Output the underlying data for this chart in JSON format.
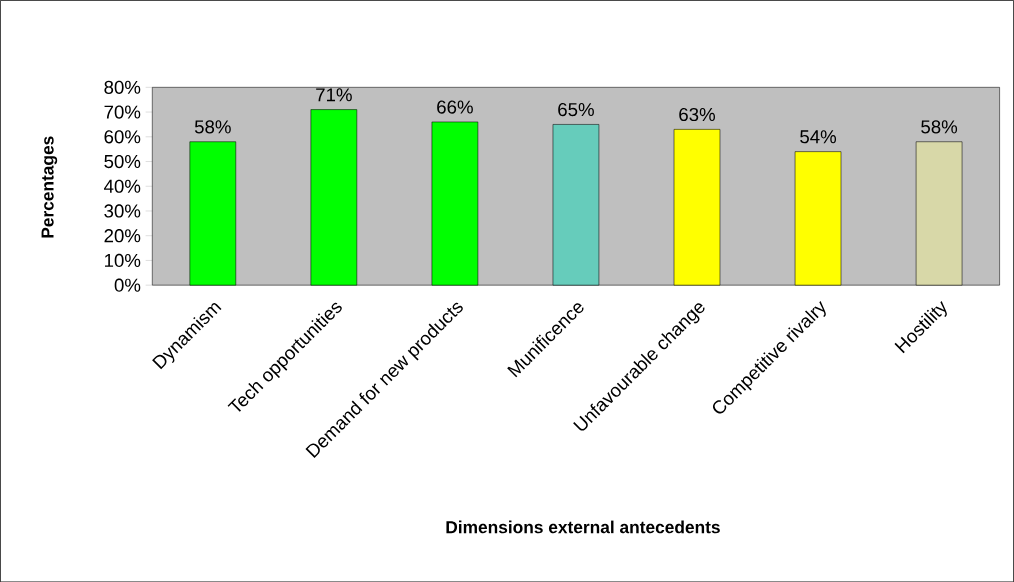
{
  "chart_data": {
    "type": "bar",
    "xlabel": "Dimensions external antecedents",
    "ylabel": "Percentages",
    "categories": [
      "Dynamism",
      "Tech opportunities",
      "Demand for new products",
      "Munificence",
      "Unfavourable change",
      "Competitive rivalry",
      "Hostility"
    ],
    "values": [
      58,
      71,
      66,
      65,
      63,
      54,
      58
    ],
    "value_labels": [
      "58%",
      "71%",
      "66%",
      "65%",
      "63%",
      "54%",
      "58%"
    ],
    "colors": [
      "#00ff00",
      "#00ff00",
      "#00ff00",
      "#66ccbb",
      "#ffff00",
      "#ffff00",
      "#d8d8a8"
    ],
    "ylim": [
      0,
      80
    ],
    "yticks": [
      {
        "value": 0,
        "label": "0%"
      },
      {
        "value": 10,
        "label": "10%"
      },
      {
        "value": 20,
        "label": "20%"
      },
      {
        "value": 30,
        "label": "30%"
      },
      {
        "value": 40,
        "label": "40%"
      },
      {
        "value": 50,
        "label": "50%"
      },
      {
        "value": 60,
        "label": "60%"
      },
      {
        "value": 70,
        "label": "70%"
      },
      {
        "value": 80,
        "label": "80%"
      }
    ]
  }
}
